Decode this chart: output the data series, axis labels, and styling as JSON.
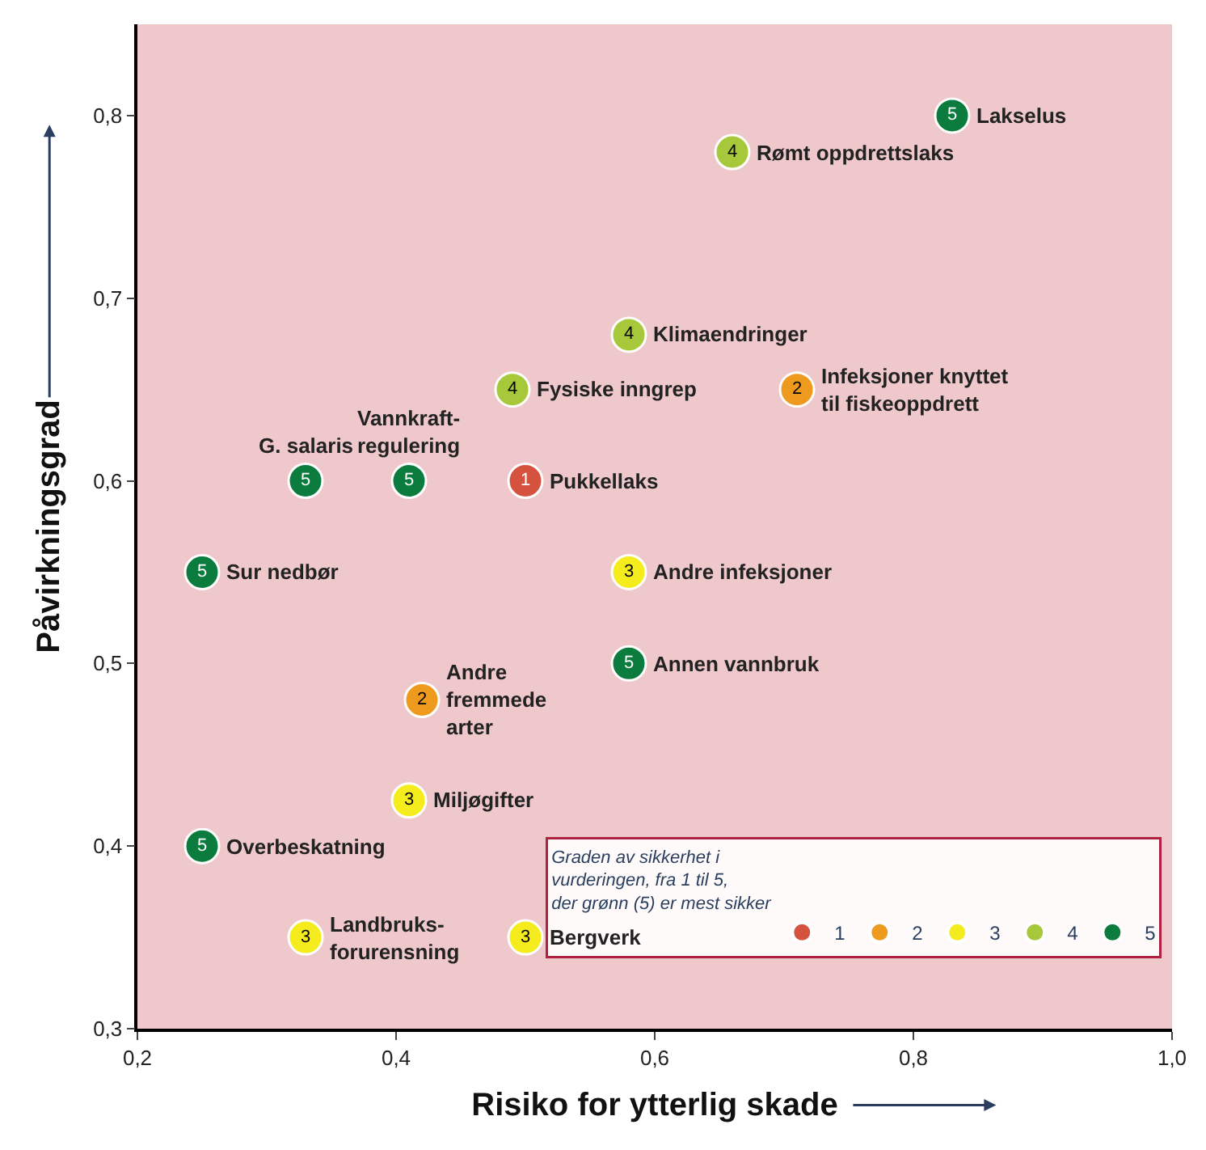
{
  "chart_data": {
    "type": "scatter",
    "xlabel": "Risiko for ytterlig skade",
    "ylabel": "Påvirkningsgrad",
    "legend_title": "Graden av sikkerhet i\nvurderingen, fra 1 til 5,\nder grønn (5) er mest sikker",
    "xlim": [
      0.2,
      1.0
    ],
    "ylim": [
      0.3,
      0.85
    ],
    "xticks": [
      {
        "value": 0.2,
        "label": "0,2"
      },
      {
        "value": 0.4,
        "label": "0,4"
      },
      {
        "value": 0.6,
        "label": "0,6"
      },
      {
        "value": 0.8,
        "label": "0,8"
      },
      {
        "value": 1.0,
        "label": "1,0"
      }
    ],
    "yticks": [
      {
        "value": 0.3,
        "label": "0,3"
      },
      {
        "value": 0.4,
        "label": "0,4"
      },
      {
        "value": 0.5,
        "label": "0,5"
      },
      {
        "value": 0.6,
        "label": "0,6"
      },
      {
        "value": 0.7,
        "label": "0,7"
      },
      {
        "value": 0.8,
        "label": "0,8"
      }
    ],
    "grid": false,
    "legend": "bottom right",
    "marker": "circle",
    "series": [
      {
        "name": "1",
        "color": "#d5523f",
        "x": [
          0.5
        ],
        "values": [
          0.6
        ]
      },
      {
        "name": "2",
        "color": "#ee9a1e",
        "x": [
          0.71,
          0.42
        ],
        "values": [
          0.65,
          0.48
        ]
      },
      {
        "name": "3",
        "color": "#f4ec1c",
        "x": [
          0.58,
          0.41,
          0.33,
          0.5
        ],
        "values": [
          0.55,
          0.425,
          0.35,
          0.35
        ]
      },
      {
        "name": "4",
        "color": "#a6c83a",
        "x": [
          0.66,
          0.58,
          0.49
        ],
        "values": [
          0.78,
          0.68,
          0.65
        ]
      },
      {
        "name": "5",
        "color": "#0b7c3e",
        "x": [
          0.83,
          0.33,
          0.41,
          0.25,
          0.58,
          0.25
        ],
        "values": [
          0.8,
          0.6,
          0.6,
          0.55,
          0.5,
          0.4
        ]
      }
    ],
    "annotations": [
      {
        "text": "Lakselus",
        "x": 0.83,
        "y": 0.8
      },
      {
        "text": "Rømt oppdrettslaks",
        "x": 0.66,
        "y": 0.78
      },
      {
        "text": "Klimaendringer",
        "x": 0.58,
        "y": 0.68
      },
      {
        "text": "Fysiske inngrep",
        "x": 0.49,
        "y": 0.65
      },
      {
        "text": "Infeksjoner knyttet\ntil fiskeoppdrett",
        "x": 0.71,
        "y": 0.65
      },
      {
        "text": "G. salaris",
        "x": 0.33,
        "y": 0.6
      },
      {
        "text": "Vannkraft-\nregulering",
        "x": 0.41,
        "y": 0.6
      },
      {
        "text": "Pukkellaks",
        "x": 0.5,
        "y": 0.6
      },
      {
        "text": "Sur nedbør",
        "x": 0.25,
        "y": 0.55
      },
      {
        "text": "Andre infeksjoner",
        "x": 0.58,
        "y": 0.55
      },
      {
        "text": "Annen vannbruk",
        "x": 0.58,
        "y": 0.5
      },
      {
        "text": "Andre\nfremmede\narter",
        "x": 0.42,
        "y": 0.48
      },
      {
        "text": "Miljøgifter",
        "x": 0.41,
        "y": 0.425
      },
      {
        "text": "Overbeskatning",
        "x": 0.25,
        "y": 0.4
      },
      {
        "text": "Landbruks-\nforurensning",
        "x": 0.33,
        "y": 0.35
      },
      {
        "text": "Bergverk",
        "x": 0.5,
        "y": 0.35
      }
    ]
  }
}
